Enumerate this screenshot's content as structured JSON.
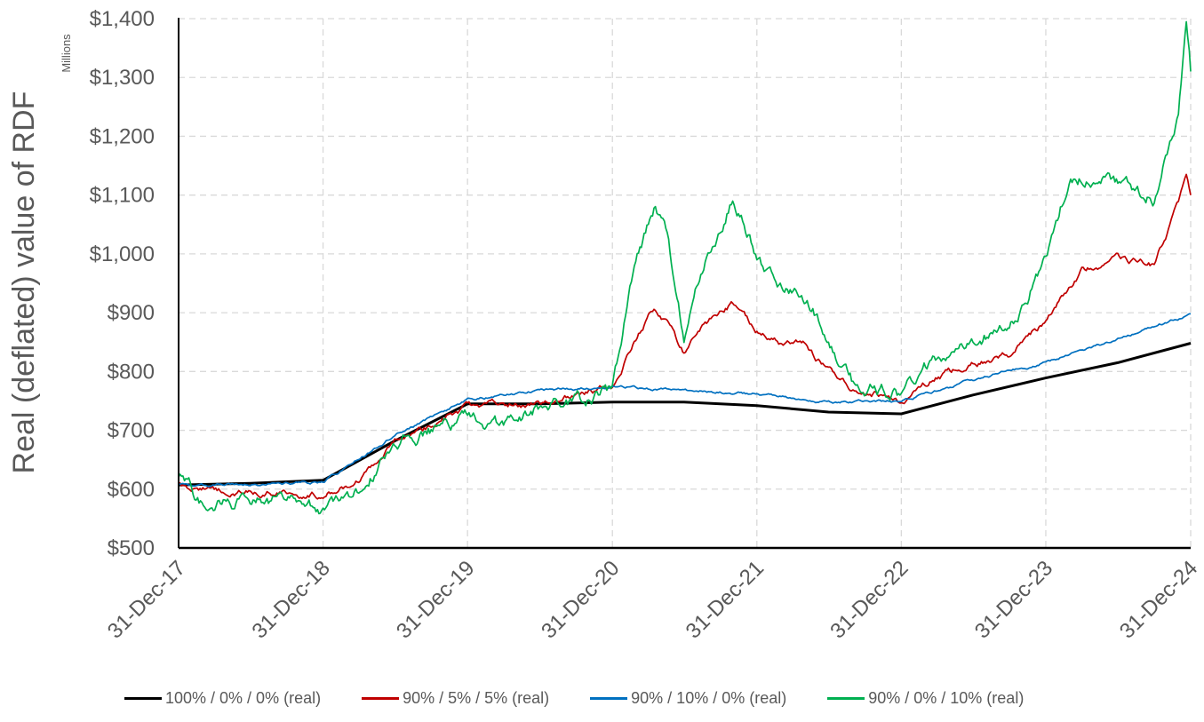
{
  "chart_data": {
    "type": "line",
    "title": "",
    "xlabel": "",
    "ylabel": "Real (deflated) value of RDF",
    "y_unit_label": "Millions",
    "ylim": [
      500,
      1400
    ],
    "yticks": [
      "$500",
      "$600",
      "$700",
      "$800",
      "$900",
      "$1,000",
      "$1,100",
      "$1,200",
      "$1,300",
      "$1,400"
    ],
    "ytick_values": [
      500,
      600,
      700,
      800,
      900,
      1000,
      1100,
      1200,
      1300,
      1400
    ],
    "xticks": [
      "31-Dec-17",
      "31-Dec-18",
      "31-Dec-19",
      "31-Dec-20",
      "31-Dec-21",
      "31-Dec-22",
      "31-Dec-23",
      "31-Dec-24"
    ],
    "xtick_values": [
      "2017-12-31",
      "2018-12-31",
      "2019-12-31",
      "2020-12-31",
      "2021-12-31",
      "2022-12-31",
      "2023-12-31",
      "2024-12-31"
    ],
    "grid": true,
    "legend_position": "bottom",
    "series": [
      {
        "name": "100% / 0% / 0% (real)",
        "color": "#000000",
        "points": [
          [
            "2017-12-31",
            607
          ],
          [
            "2018-06-30",
            610
          ],
          [
            "2018-12-31",
            615
          ],
          [
            "2019-06-30",
            682
          ],
          [
            "2019-12-31",
            745
          ],
          [
            "2020-06-30",
            745
          ],
          [
            "2020-12-31",
            748
          ],
          [
            "2021-06-30",
            748
          ],
          [
            "2021-12-31",
            742
          ],
          [
            "2022-06-30",
            731
          ],
          [
            "2022-12-31",
            728
          ],
          [
            "2023-06-30",
            760
          ],
          [
            "2023-12-31",
            789
          ],
          [
            "2024-06-30",
            815
          ],
          [
            "2024-12-31",
            848
          ]
        ]
      },
      {
        "name": "90% / 5% / 5% (real)",
        "color": "#c00000",
        "points": [
          [
            "2017-12-31",
            607
          ],
          [
            "2018-03-31",
            598
          ],
          [
            "2018-06-30",
            595
          ],
          [
            "2018-09-30",
            596
          ],
          [
            "2018-12-31",
            590
          ],
          [
            "2019-03-31",
            617
          ],
          [
            "2019-06-30",
            685
          ],
          [
            "2019-09-30",
            708
          ],
          [
            "2019-12-31",
            738
          ],
          [
            "2020-03-31",
            745
          ],
          [
            "2020-06-30",
            745
          ],
          [
            "2020-09-30",
            760
          ],
          [
            "2020-12-31",
            775
          ],
          [
            "2021-02-28",
            855
          ],
          [
            "2021-04-15",
            905
          ],
          [
            "2021-05-15",
            885
          ],
          [
            "2021-06-30",
            832
          ],
          [
            "2021-08-15",
            875
          ],
          [
            "2021-10-31",
            915
          ],
          [
            "2021-12-31",
            870
          ],
          [
            "2022-02-28",
            848
          ],
          [
            "2022-04-30",
            845
          ],
          [
            "2022-06-30",
            800
          ],
          [
            "2022-08-31",
            768
          ],
          [
            "2022-10-31",
            762
          ],
          [
            "2022-12-31",
            750
          ],
          [
            "2023-03-31",
            790
          ],
          [
            "2023-06-30",
            812
          ],
          [
            "2023-09-30",
            828
          ],
          [
            "2023-12-31",
            885
          ],
          [
            "2024-03-31",
            970
          ],
          [
            "2024-06-30",
            990
          ],
          [
            "2024-09-30",
            980
          ],
          [
            "2024-11-30",
            1085
          ],
          [
            "2024-12-20",
            1135
          ],
          [
            "2024-12-31",
            1100
          ]
        ]
      },
      {
        "name": "90% / 10% / 0% (real)",
        "color": "#0070c0",
        "points": [
          [
            "2017-12-31",
            607
          ],
          [
            "2018-06-30",
            608
          ],
          [
            "2018-12-31",
            612
          ],
          [
            "2019-06-30",
            692
          ],
          [
            "2019-12-31",
            752
          ],
          [
            "2020-06-30",
            768
          ],
          [
            "2020-12-31",
            775
          ],
          [
            "2021-06-30",
            768
          ],
          [
            "2021-12-31",
            762
          ],
          [
            "2022-06-30",
            748
          ],
          [
            "2022-12-31",
            750
          ],
          [
            "2023-06-30",
            785
          ],
          [
            "2023-12-31",
            816
          ],
          [
            "2024-06-30",
            855
          ],
          [
            "2024-12-31",
            898
          ]
        ]
      },
      {
        "name": "90% / 0% / 10% (real)",
        "color": "#00b050",
        "points": [
          [
            "2017-12-31",
            620
          ],
          [
            "2018-02-28",
            580
          ],
          [
            "2018-06-30",
            577
          ],
          [
            "2018-09-30",
            582
          ],
          [
            "2018-12-31",
            568
          ],
          [
            "2019-03-31",
            590
          ],
          [
            "2019-06-30",
            680
          ],
          [
            "2019-09-30",
            700
          ],
          [
            "2019-12-31",
            720
          ],
          [
            "2020-03-31",
            705
          ],
          [
            "2020-06-30",
            740
          ],
          [
            "2020-09-30",
            745
          ],
          [
            "2020-12-31",
            765
          ],
          [
            "2021-02-28",
            990
          ],
          [
            "2021-04-15",
            1080
          ],
          [
            "2021-05-15",
            1040
          ],
          [
            "2021-06-30",
            855
          ],
          [
            "2021-08-15",
            970
          ],
          [
            "2021-10-31",
            1100
          ],
          [
            "2021-12-31",
            1000
          ],
          [
            "2022-02-28",
            940
          ],
          [
            "2022-04-30",
            930
          ],
          [
            "2022-06-30",
            860
          ],
          [
            "2022-08-31",
            780
          ],
          [
            "2022-10-31",
            770
          ],
          [
            "2022-12-31",
            760
          ],
          [
            "2023-03-31",
            825
          ],
          [
            "2023-06-30",
            860
          ],
          [
            "2023-09-30",
            875
          ],
          [
            "2023-12-31",
            985
          ],
          [
            "2024-02-28",
            1130
          ],
          [
            "2024-06-30",
            1120
          ],
          [
            "2024-09-30",
            1095
          ],
          [
            "2024-11-30",
            1240
          ],
          [
            "2024-12-20",
            1380
          ],
          [
            "2024-12-31",
            1310
          ]
        ]
      }
    ]
  }
}
